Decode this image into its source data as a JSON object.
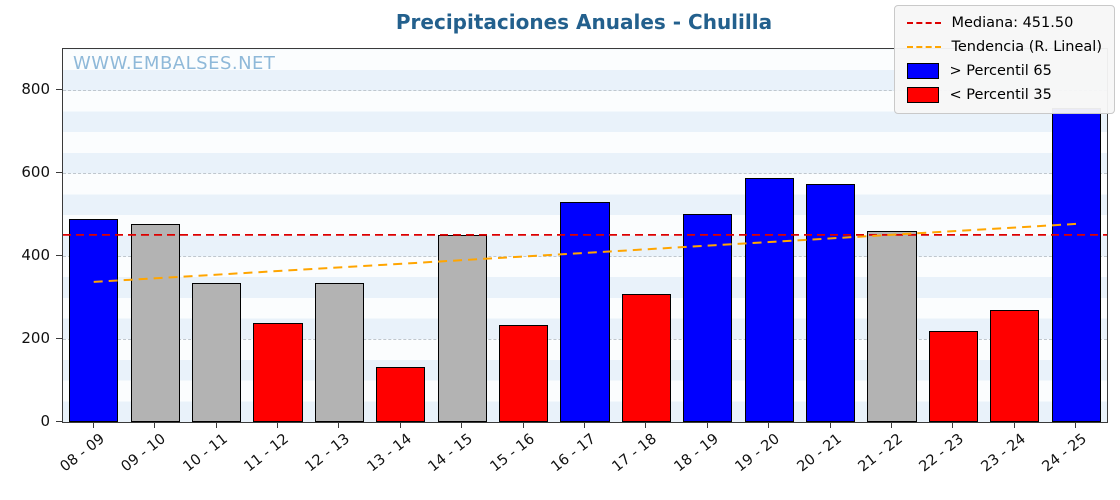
{
  "title": "Precipitaciones Anuales - Chulilla",
  "watermark": "WWW.EMBALSES.NET",
  "legend": {
    "median_label": "Mediana: 451.50",
    "trend_label": "Tendencia (R. Lineal)",
    "p65_label": "> Percentil 65",
    "p35_label": "< Percentil 35"
  },
  "chart_data": {
    "type": "bar",
    "title": "Precipitaciones Anuales - Chulilla",
    "xlabel": "",
    "ylabel": "",
    "categories": [
      "08 - 09",
      "09 - 10",
      "10 - 11",
      "11 - 12",
      "12 - 13",
      "13 - 14",
      "14 - 15",
      "15 - 16",
      "16 - 17",
      "17 - 18",
      "18 - 19",
      "19 - 20",
      "20 - 21",
      "21 - 22",
      "22 - 23",
      "23 - 24",
      "24 - 25"
    ],
    "values": [
      490,
      478,
      335,
      240,
      335,
      133,
      452,
      233,
      530,
      308,
      503,
      588,
      575,
      462,
      220,
      270,
      758
    ],
    "bar_colors": [
      "p65",
      "mid",
      "mid",
      "p35",
      "mid",
      "p35",
      "mid",
      "p35",
      "p65",
      "p35",
      "p65",
      "p65",
      "p65",
      "mid",
      "p35",
      "p35",
      "p65"
    ],
    "median": 451.5,
    "trend": {
      "start": 338,
      "end": 478
    },
    "yticks": [
      0,
      200,
      400,
      600,
      800
    ],
    "ylim": [
      0,
      900
    ],
    "grid": true,
    "legend_position": "top-right",
    "colors": {
      "p65": "#0000ff",
      "p35": "#ff0000",
      "mid": "#b3b3b3",
      "median_line": "#dd0000",
      "trend_line": "#ffa500",
      "title": "#23608d",
      "watermark": "#8fb9d9"
    }
  }
}
